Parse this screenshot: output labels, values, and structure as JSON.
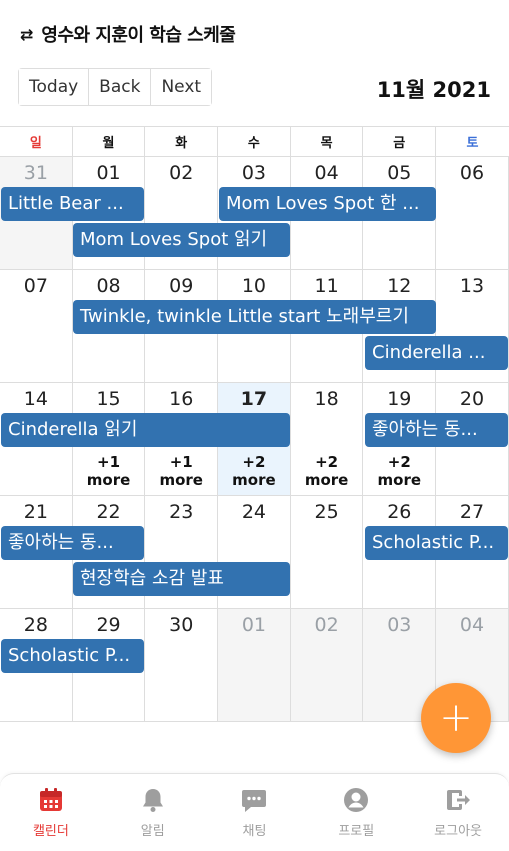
{
  "header": {
    "icon": "swap-arrows-icon",
    "title": "영수와 지훈이 학습 스케줄"
  },
  "toolbar": {
    "today": "Today",
    "back": "Back",
    "next": "Next"
  },
  "month_label": "11월 2021",
  "weekdays": [
    "일",
    "월",
    "화",
    "수",
    "목",
    "금",
    "토"
  ],
  "weeks": [
    {
      "days": [
        "31",
        "01",
        "02",
        "03",
        "04",
        "05",
        "06"
      ]
    },
    {
      "days": [
        "07",
        "08",
        "09",
        "10",
        "11",
        "12",
        "13"
      ]
    },
    {
      "days": [
        "14",
        "15",
        "16",
        "17",
        "18",
        "19",
        "20"
      ]
    },
    {
      "days": [
        "21",
        "22",
        "23",
        "24",
        "25",
        "26",
        "27"
      ]
    },
    {
      "days": [
        "28",
        "29",
        "30",
        "01",
        "02",
        "03",
        "04"
      ]
    }
  ],
  "events": {
    "w0_little_bear": "Little Bear ...",
    "w0_mom_spot_1": "Mom Loves Spot 한 ...",
    "w0_mom_spot_2": "Mom Loves Spot 읽기",
    "w1_twinkle": "Twinkle, twinkle Little start 노래부르기",
    "w1_cinderella": "Cinderella ...",
    "w2_cinderella": "Cinderella 읽기",
    "w2_like": "좋아하는 동...",
    "w3_like": "좋아하는 동...",
    "w3_scholastic": "Scholastic P...",
    "w3_field": "현장학습 소감 발표",
    "w4_scholastic": "Scholastic P..."
  },
  "more_links": {
    "d15": "+1 more",
    "d16": "+1 more",
    "d17": "+2 more",
    "d18": "+2 more",
    "d19": "+2 more"
  },
  "fab_label": "+",
  "tabs": [
    {
      "label": "캘린더",
      "icon": "calendar-icon",
      "active": true
    },
    {
      "label": "알림",
      "icon": "bell-icon"
    },
    {
      "label": "채팅",
      "icon": "chat-icon"
    },
    {
      "label": "프로필",
      "icon": "profile-icon"
    },
    {
      "label": "로그아웃",
      "icon": "logout-icon"
    }
  ],
  "colors": {
    "event": "#3272b0",
    "fab": "#ff9636",
    "active_tab": "#e53935",
    "today_bg": "#eaf4fd"
  }
}
